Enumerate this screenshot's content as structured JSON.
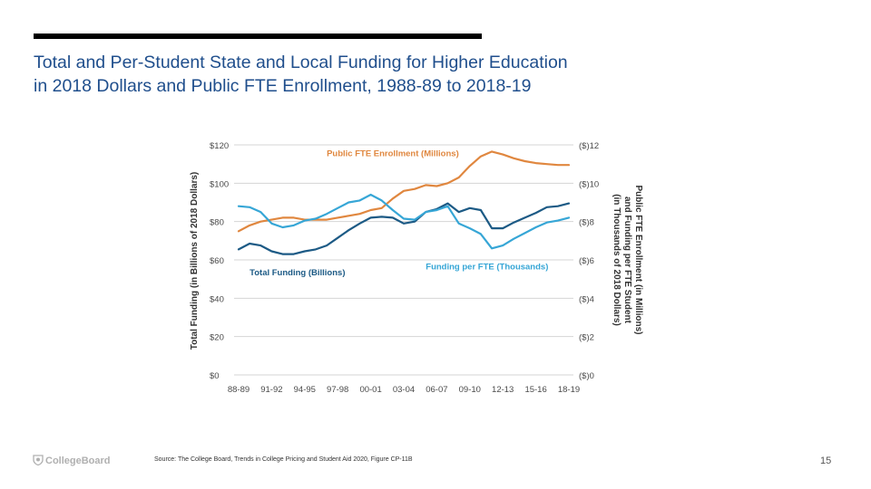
{
  "slide": {
    "title_line1": "Total and Per-Student State and Local Funding for Higher Education",
    "title_line2": "in 2018 Dollars and Public FTE Enrollment, 1988-89 to 2018-19",
    "source": "Source: The College Board, Trends in College Pricing and Student Aid 2020, Figure CP-11B",
    "logo_text": "CollegeBoard",
    "page_number": "15"
  },
  "colors": {
    "enrollment": "#e0873f",
    "total_funding": "#1c5a85",
    "funding_per_fte": "#36a6d6",
    "grid": "#d4d4d4",
    "axis_text": "#4a4a4a"
  },
  "chart_data": {
    "type": "line",
    "ylabel": "Total Funding (in Billions of 2018 Dollars)",
    "y2label_lines": [
      "Public FTE Enrollment (in Millions)",
      "and Funding per FTE Student",
      "(in Thousands of 2018 Dollars)"
    ],
    "ylim": [
      0,
      120
    ],
    "y2lim": [
      0,
      12
    ],
    "y_ticks": [
      0,
      20,
      40,
      60,
      80,
      100,
      120
    ],
    "y_tick_labels": [
      "$0",
      "$20",
      "$40",
      "$60",
      "$80",
      "$100",
      "$120"
    ],
    "y2_tick_labels": [
      "($)0",
      "($)2",
      "($)4",
      "($)6",
      "($)8",
      "($)10",
      "($)12"
    ],
    "x_tick_labels": [
      "88-89",
      "91-92",
      "94-95",
      "97-98",
      "00-01",
      "03-04",
      "06-07",
      "09-10",
      "12-13",
      "15-16",
      "18-19"
    ],
    "grid": true,
    "series": [
      {
        "name": "Public FTE Enrollment (Millions)",
        "axis": "right",
        "values": [
          7.5,
          7.8,
          8.0,
          8.1,
          8.2,
          8.2,
          8.1,
          8.1,
          8.1,
          8.2,
          8.3,
          8.4,
          8.6,
          8.7,
          9.2,
          9.6,
          9.7,
          9.9,
          9.85,
          10.0,
          10.3,
          10.9,
          11.4,
          11.65,
          11.5,
          11.3,
          11.15,
          11.05,
          11.0,
          10.95,
          10.95
        ]
      },
      {
        "name": "Total Funding (Billions)",
        "axis": "left",
        "values": [
          65.5,
          68.5,
          67.5,
          64.5,
          63.0,
          63.0,
          64.5,
          65.5,
          67.5,
          71.5,
          75.5,
          79.0,
          82.0,
          82.5,
          82.0,
          79.0,
          80.0,
          85.0,
          86.5,
          89.5,
          85.0,
          87.0,
          86.0,
          76.5,
          76.5,
          79.5,
          82.0,
          84.5,
          87.5,
          88.0,
          89.5
        ]
      },
      {
        "name": "Funding per FTE (Thousands)",
        "axis": "right",
        "values": [
          8.8,
          8.75,
          8.5,
          7.9,
          7.7,
          7.8,
          8.05,
          8.15,
          8.4,
          8.7,
          9.0,
          9.1,
          9.4,
          9.1,
          8.6,
          8.15,
          8.1,
          8.5,
          8.6,
          8.8,
          7.9,
          7.65,
          7.35,
          6.6,
          6.75,
          7.1,
          7.4,
          7.7,
          7.95,
          8.05,
          8.2
        ]
      }
    ],
    "annotations": [
      {
        "text": "Public FTE Enrollment (Millions)",
        "series": 0,
        "x_index": 8,
        "y_value": 114,
        "anchor": "start"
      },
      {
        "text": "Total Funding (Billions)",
        "series": 1,
        "x_index": 1,
        "y_value": 52,
        "anchor": "start"
      },
      {
        "text": "Funding per FTE (Thousands)",
        "series": 2,
        "x_index": 17,
        "y_value": 55,
        "anchor": "start"
      }
    ]
  }
}
